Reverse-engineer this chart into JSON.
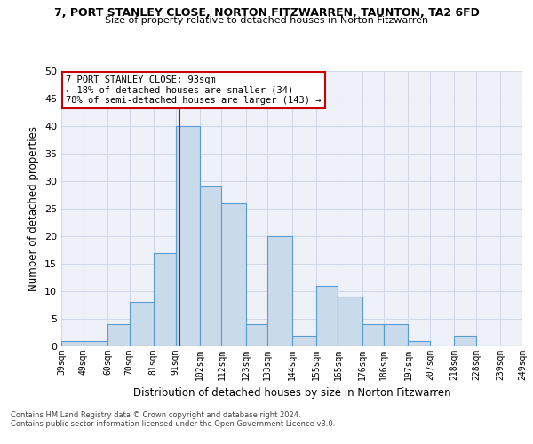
{
  "title1": "7, PORT STANLEY CLOSE, NORTON FITZWARREN, TAUNTON, TA2 6FD",
  "title2": "Size of property relative to detached houses in Norton Fitzwarren",
  "xlabel": "Distribution of detached houses by size in Norton Fitzwarren",
  "ylabel": "Number of detached properties",
  "footnote1": "Contains HM Land Registry data © Crown copyright and database right 2024.",
  "footnote2": "Contains public sector information licensed under the Open Government Licence v3.0.",
  "bins": [
    39,
    49,
    60,
    70,
    81,
    91,
    102,
    112,
    123,
    133,
    144,
    155,
    165,
    176,
    186,
    197,
    207,
    218,
    228,
    239,
    249
  ],
  "bin_labels": [
    "39sqm",
    "49sqm",
    "60sqm",
    "70sqm",
    "81sqm",
    "91sqm",
    "102sqm",
    "112sqm",
    "123sqm",
    "133sqm",
    "144sqm",
    "155sqm",
    "165sqm",
    "176sqm",
    "186sqm",
    "197sqm",
    "207sqm",
    "218sqm",
    "228sqm",
    "239sqm",
    "249sqm"
  ],
  "counts": [
    1,
    1,
    4,
    8,
    17,
    40,
    29,
    26,
    4,
    20,
    2,
    11,
    9,
    4,
    4,
    1,
    0,
    2,
    0,
    0
  ],
  "bar_color": "#c9daea",
  "bar_edge_color": "#5b9bd5",
  "grid_color": "#d0d8e8",
  "bg_color": "#eef2f8",
  "vline_x": 93,
  "vline_color": "#cc0000",
  "annotation_line1": "7 PORT STANLEY CLOSE: 93sqm",
  "annotation_line2": "← 18% of detached houses are smaller (34)",
  "annotation_line3": "78% of semi-detached houses are larger (143) →",
  "annotation_box_color": "white",
  "annotation_border_color": "#cc0000",
  "ylim": [
    0,
    50
  ],
  "yticks": [
    0,
    5,
    10,
    15,
    20,
    25,
    30,
    35,
    40,
    45,
    50
  ]
}
